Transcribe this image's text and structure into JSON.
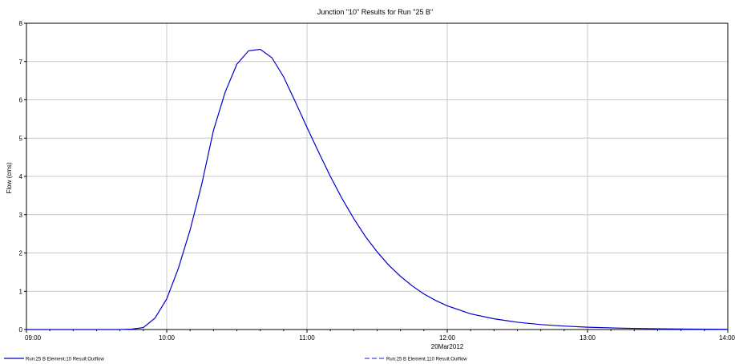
{
  "chart_data": {
    "type": "line",
    "title": "Junction \"10\" Results for Run \"25 B\"",
    "ylabel": "Flow (cms)",
    "xlabel": "20Mar2012",
    "xlim": [
      "09:00",
      "14:00"
    ],
    "ylim": [
      0,
      8
    ],
    "y_ticks": [
      0,
      1,
      2,
      3,
      4,
      5,
      6,
      7,
      8
    ],
    "x_ticks": [
      "09:00",
      "10:00",
      "11:00",
      "12:00",
      "13:00",
      "14:00"
    ],
    "grid": true,
    "legend_placement": "bottom",
    "series": [
      {
        "name": "Run:25 B Element:10 Result:Outflow",
        "color": "#0000cc",
        "style": "solid",
        "points": [
          [
            "09:00",
            0
          ],
          [
            "09:10",
            0
          ],
          [
            "09:20",
            0
          ],
          [
            "09:30",
            0
          ],
          [
            "09:40",
            0
          ],
          [
            "09:45",
            0.01
          ],
          [
            "09:50",
            0.05
          ],
          [
            "09:55",
            0.3
          ],
          [
            "10:00",
            0.8
          ],
          [
            "10:05",
            1.6
          ],
          [
            "10:10",
            2.6
          ],
          [
            "10:15",
            3.8
          ],
          [
            "10:20",
            5.2
          ],
          [
            "10:25",
            6.2
          ],
          [
            "10:30",
            6.93
          ],
          [
            "10:35",
            7.28
          ],
          [
            "10:40",
            7.32
          ],
          [
            "10:45",
            7.1
          ],
          [
            "10:50",
            6.6
          ],
          [
            "10:55",
            5.95
          ],
          [
            "11:00",
            5.28
          ],
          [
            "11:05",
            4.63
          ],
          [
            "11:10",
            4.0
          ],
          [
            "11:15",
            3.42
          ],
          [
            "11:20",
            2.9
          ],
          [
            "11:25",
            2.43
          ],
          [
            "11:30",
            2.03
          ],
          [
            "11:35",
            1.68
          ],
          [
            "11:40",
            1.39
          ],
          [
            "11:45",
            1.14
          ],
          [
            "11:50",
            0.93
          ],
          [
            "11:55",
            0.76
          ],
          [
            "12:00",
            0.62
          ],
          [
            "12:10",
            0.41
          ],
          [
            "12:20",
            0.28
          ],
          [
            "12:30",
            0.19
          ],
          [
            "12:40",
            0.13
          ],
          [
            "12:50",
            0.09
          ],
          [
            "13:00",
            0.06
          ],
          [
            "13:15",
            0.035
          ],
          [
            "13:30",
            0.02
          ],
          [
            "13:45",
            0.01
          ],
          [
            "14:00",
            0.005
          ]
        ]
      },
      {
        "name": "Run:25 B Element:110 Result:Outflow",
        "color": "#4444ee",
        "style": "dashed",
        "points": []
      }
    ]
  }
}
